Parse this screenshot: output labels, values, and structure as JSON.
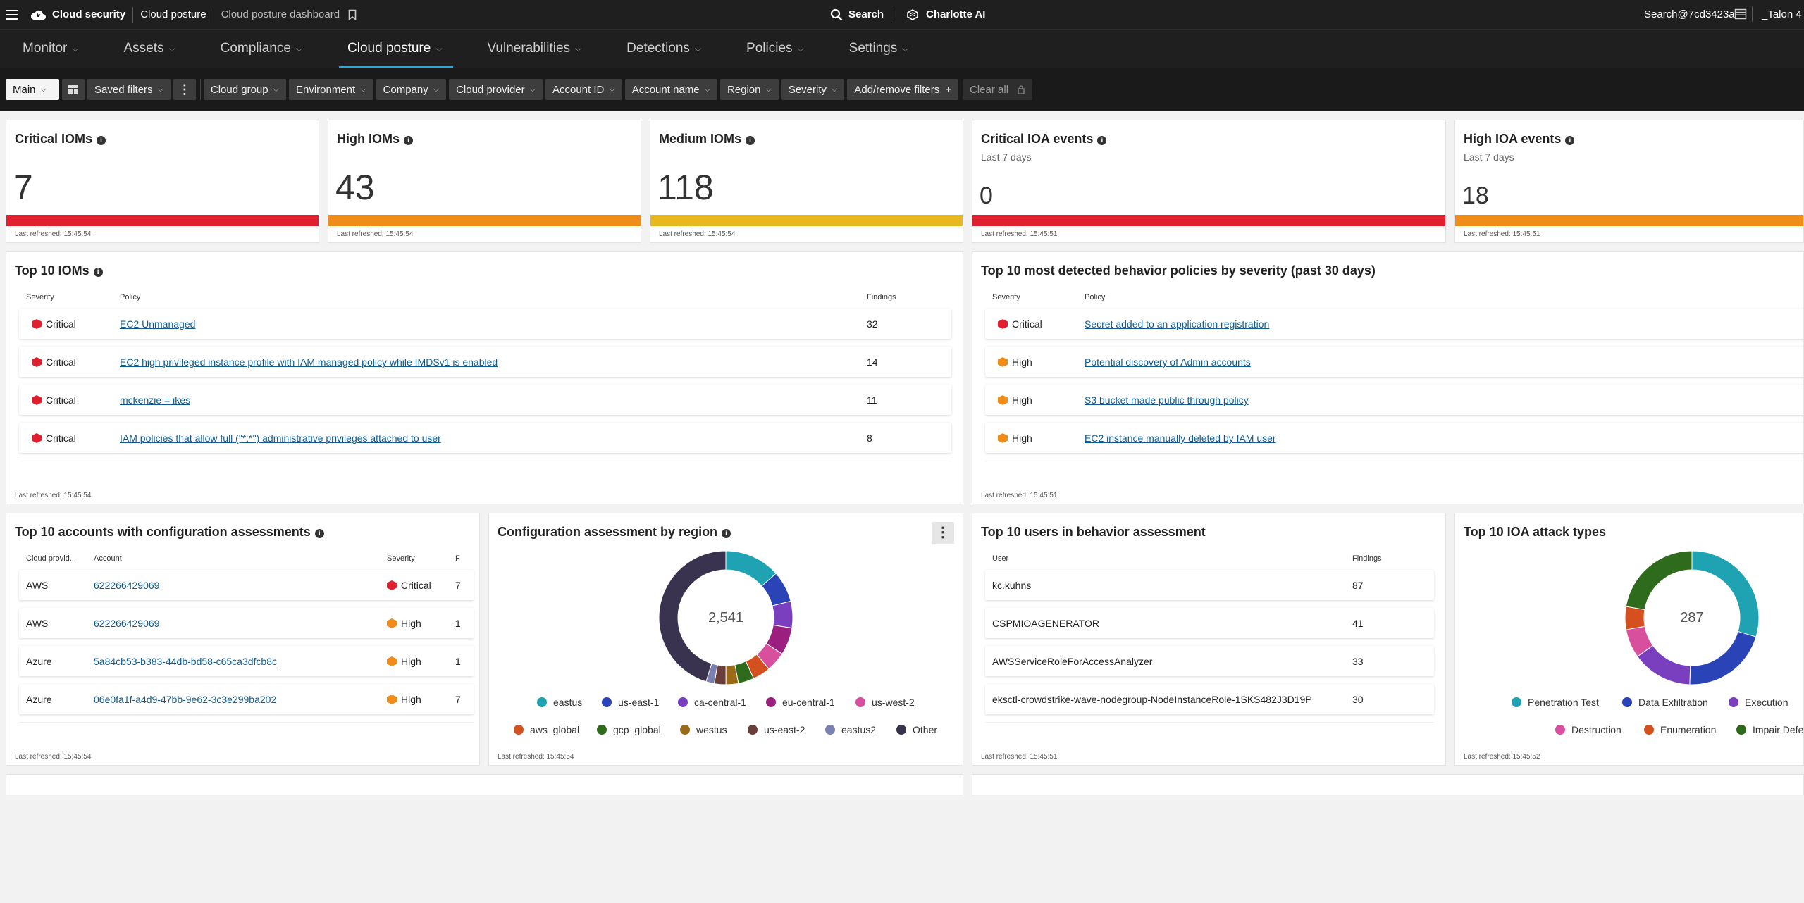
{
  "topbar": {
    "app": "Cloud security",
    "section": "Cloud posture",
    "page": "Cloud posture dashboard",
    "search": "Search",
    "assistant": "Charlotte AI",
    "user": "Search@7cd3423a",
    "tenant": "_Talon 4"
  },
  "nav": [
    {
      "label": "Monitor"
    },
    {
      "label": "Assets"
    },
    {
      "label": "Compliance"
    },
    {
      "label": "Cloud posture"
    },
    {
      "label": "Vulnerabilities"
    },
    {
      "label": "Detections"
    },
    {
      "label": "Policies"
    },
    {
      "label": "Settings"
    }
  ],
  "filters": {
    "view": "Main",
    "saved": "Saved filters",
    "items": [
      "Cloud group",
      "Environment",
      "Company",
      "Cloud provider",
      "Account ID",
      "Account name",
      "Region",
      "Severity"
    ],
    "add": "Add/remove filters",
    "clear": "Clear all"
  },
  "kpis": [
    {
      "title": "Critical IOMs",
      "sub": "",
      "value": "7",
      "refreshed": "Last refreshed: 15:45:54",
      "color": "#e0202e"
    },
    {
      "title": "High IOMs",
      "sub": "",
      "value": "43",
      "refreshed": "Last refreshed: 15:45:54",
      "color": "#f08c1a"
    },
    {
      "title": "Medium IOMs",
      "sub": "",
      "value": "118",
      "refreshed": "Last refreshed: 15:45:54",
      "color": "#e8b820"
    },
    {
      "title": "Critical IOA events",
      "sub": "Last 7 days",
      "value": "0",
      "refreshed": "Last refreshed: 15:45:51",
      "color": "#e0202e"
    },
    {
      "title": "High IOA events",
      "sub": "Last 7 days",
      "value": "18",
      "refreshed": "Last refreshed: 15:45:51",
      "color": "#f08c1a"
    }
  ],
  "top_ioms": {
    "title": "Top 10 IOMs",
    "cols": [
      "Severity",
      "Policy",
      "Findings"
    ],
    "rows": [
      {
        "severity": "Critical",
        "policy": "EC2 Unmanaged",
        "findings": "32"
      },
      {
        "severity": "Critical",
        "policy": "EC2 high privileged instance profile with IAM managed policy while IMDSv1 is enabled",
        "findings": "14"
      },
      {
        "severity": "Critical",
        "policy": "mckenzie = ikes",
        "findings": "11"
      },
      {
        "severity": "Critical",
        "policy": "IAM policies that allow full (\"*:*\") administrative privileges attached to user",
        "findings": "8"
      }
    ],
    "refreshed": "Last refreshed: 15:45:54"
  },
  "top_behavior": {
    "title": "Top 10 most detected behavior policies by severity (past 30 days)",
    "cols": [
      "Severity",
      "Policy"
    ],
    "rows": [
      {
        "severity": "Critical",
        "policy": "Secret added to an application registration"
      },
      {
        "severity": "High",
        "policy": "Potential discovery of Admin accounts"
      },
      {
        "severity": "High",
        "policy": "S3 bucket made public through policy"
      },
      {
        "severity": "High",
        "policy": "EC2 instance manually deleted by IAM user"
      }
    ],
    "refreshed": "Last refreshed: 15:45:51"
  },
  "top_accounts": {
    "title": "Top 10 accounts with configuration assessments",
    "cols": [
      "Cloud provid...",
      "Account",
      "Severity",
      "F"
    ],
    "rows": [
      {
        "provider": "AWS",
        "account": "622266429069",
        "severity": "Critical",
        "f": "7"
      },
      {
        "provider": "AWS",
        "account": "622266429069",
        "severity": "High",
        "f": "1"
      },
      {
        "provider": "Azure",
        "account": "5a84cb53-b383-44db-bd58-c65ca3dfcb8c",
        "severity": "High",
        "f": "1"
      },
      {
        "provider": "Azure",
        "account": "06e0fa1f-a4d9-47bb-9e62-3c3e299ba202",
        "severity": "High",
        "f": "7"
      }
    ],
    "refreshed": "Last refreshed: 15:45:54"
  },
  "region_chart": {
    "title": "Configuration assessment by region",
    "total": "2,541",
    "refreshed": "Last refreshed: 15:45:54"
  },
  "top_users": {
    "title": "Top 10 users in behavior assessment",
    "cols": [
      "User",
      "Findings"
    ],
    "rows": [
      {
        "user": "kc.kuhns",
        "findings": "87"
      },
      {
        "user": "CSPMIOAGENERATOR",
        "findings": "41"
      },
      {
        "user": "AWSServiceRoleForAccessAnalyzer",
        "findings": "33"
      },
      {
        "user": "eksctl-crowdstrike-wave-nodegroup-NodeInstanceRole-1SKS482J3D19P",
        "findings": "30"
      }
    ],
    "refreshed": "Last refreshed: 15:45:51"
  },
  "attack_chart": {
    "title": "Top 10 IOA attack types",
    "total": "287",
    "refreshed": "Last refreshed: 15:45:52"
  },
  "chart_data": [
    {
      "type": "pie",
      "title": "Configuration assessment by region",
      "total": 2541,
      "labels": [
        "eastus",
        "us-east-1",
        "ca-central-1",
        "eu-central-1",
        "us-west-2",
        "aws_global",
        "gcp_global",
        "westus",
        "us-east-2",
        "eastus2",
        "Other"
      ],
      "colors": [
        "#1fa3b3",
        "#2a44b8",
        "#7a3fbf",
        "#9b1f7e",
        "#d84f9e",
        "#d4501e",
        "#2f6b1c",
        "#9a6a18",
        "#6a3f3a",
        "#7a80b0",
        "#3a3350"
      ],
      "values": [
        343,
        191,
        164,
        168,
        122,
        109,
        97,
        76,
        71,
        51,
        1149
      ],
      "legend": "bottom"
    },
    {
      "type": "pie",
      "title": "Top 10 IOA attack types",
      "total": 287,
      "labels": [
        "Penetration Test",
        "Data Exfiltration",
        "Execution",
        "Destruction",
        "Enumeration",
        "Impair Defe"
      ],
      "colors": [
        "#1fa3b3",
        "#2a44b8",
        "#7a3fbf",
        "#d84f9e",
        "#d4501e",
        "#2f6b1c"
      ],
      "values": [
        85,
        60,
        42,
        20,
        16,
        64
      ],
      "legend": "bottom"
    }
  ]
}
